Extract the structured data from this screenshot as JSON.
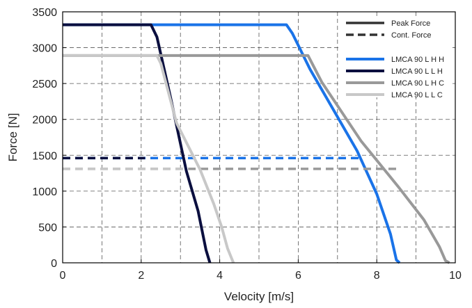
{
  "chart_data": {
    "type": "line",
    "title": "",
    "xlabel": "Velocity [m/s]",
    "ylabel": "Force [N]",
    "xlim": [
      0,
      10
    ],
    "ylim": [
      0,
      3500
    ],
    "xticks": [
      0,
      2,
      4,
      6,
      8,
      10
    ],
    "yticks": [
      0,
      500,
      1000,
      1500,
      2000,
      2500,
      3000,
      3500
    ],
    "grid": true,
    "grid_style": "dashed",
    "legend_position": "top-right",
    "style_legend": [
      {
        "name": "Peak Force",
        "dash": "solid"
      },
      {
        "name": "Cont. Force",
        "dash": "dashed"
      }
    ],
    "series": [
      {
        "name": "LMCA 90 L H H",
        "color": "#1a73e8",
        "peak_force": [
          [
            0,
            3320
          ],
          [
            5.7,
            3320
          ],
          [
            5.85,
            3200
          ],
          [
            6.3,
            2700
          ],
          [
            7.5,
            1560
          ],
          [
            8.0,
            960
          ],
          [
            8.35,
            400
          ],
          [
            8.5,
            40
          ],
          [
            8.58,
            0
          ]
        ],
        "cont_force": [
          [
            0,
            1460
          ],
          [
            7.6,
            1460
          ]
        ]
      },
      {
        "name": "LMCA 90 L L H",
        "color": "#0b0f3f",
        "peak_force": [
          [
            0,
            3320
          ],
          [
            2.25,
            3320
          ],
          [
            2.4,
            3150
          ],
          [
            2.75,
            2300
          ],
          [
            3.15,
            1280
          ],
          [
            3.45,
            720
          ],
          [
            3.65,
            180
          ],
          [
            3.75,
            0
          ]
        ],
        "cont_force": [
          [
            0,
            1460
          ],
          [
            2.1,
            1460
          ]
        ]
      },
      {
        "name": "LMCA 90 L H C",
        "color": "#999999",
        "peak_force": [
          [
            0,
            2890
          ],
          [
            6.25,
            2890
          ],
          [
            6.6,
            2520
          ],
          [
            7.6,
            1700
          ],
          [
            8.55,
            1060
          ],
          [
            9.2,
            600
          ],
          [
            9.6,
            220
          ],
          [
            9.75,
            30
          ],
          [
            9.85,
            0
          ]
        ],
        "cont_force": [
          [
            0,
            1310
          ],
          [
            8.55,
            1310
          ]
        ]
      },
      {
        "name": "LMCA 90 L L C",
        "color": "#c8c8c8",
        "peak_force": [
          [
            0,
            2890
          ],
          [
            2.4,
            2890
          ],
          [
            2.5,
            2780
          ],
          [
            2.9,
            1950
          ],
          [
            3.5,
            1300
          ],
          [
            3.85,
            820
          ],
          [
            4.05,
            500
          ],
          [
            4.2,
            200
          ],
          [
            4.35,
            0
          ]
        ],
        "cont_force": [
          [
            0,
            1310
          ],
          [
            3.2,
            1310
          ]
        ]
      }
    ]
  }
}
